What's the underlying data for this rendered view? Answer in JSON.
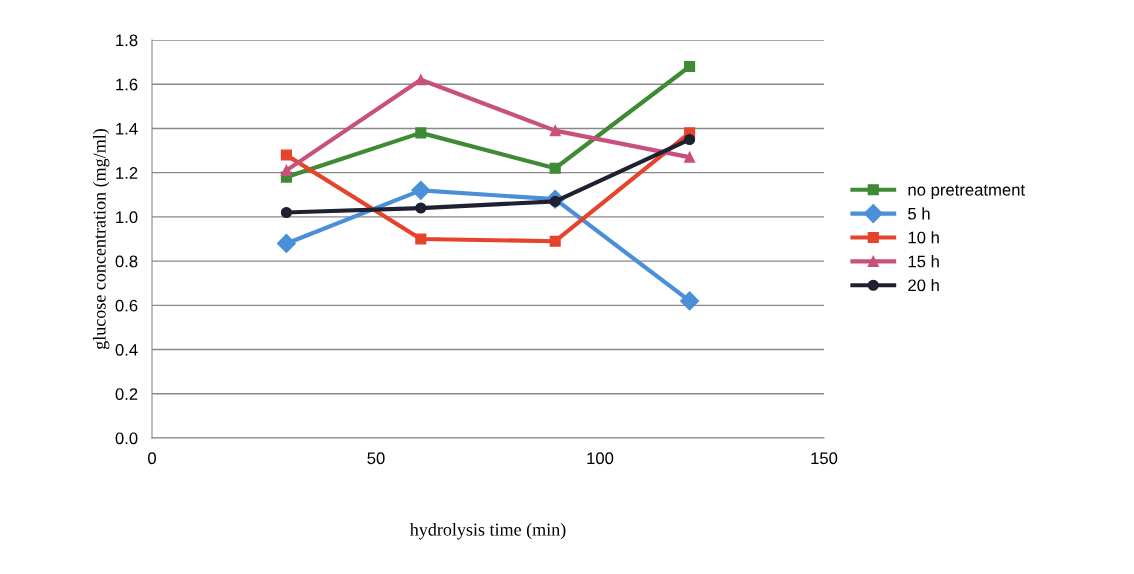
{
  "chart_data": {
    "type": "line",
    "xlabel": "hydrolysis time (min)",
    "ylabel": "glucose concentration (mg/ml)",
    "xlim": [
      0,
      150
    ],
    "xticks": [
      0,
      50,
      100,
      150
    ],
    "ylim": [
      0,
      1.8
    ],
    "yticks": [
      {
        "value": 0,
        "label": "0.0"
      },
      {
        "value": 0.2,
        "label": "0.2"
      },
      {
        "value": 0.4,
        "label": "0.4"
      },
      {
        "value": 0.6,
        "label": "0.6"
      },
      {
        "value": 0.8,
        "label": "0.8"
      },
      {
        "value": 1.0,
        "label": "1.0"
      },
      {
        "value": 1.2,
        "label": "1.2"
      },
      {
        "value": 1.4,
        "label": "1.4"
      },
      {
        "value": 1.6,
        "label": "1.6"
      },
      {
        "value": 1.8,
        "label": "1.8"
      }
    ],
    "x": [
      30,
      60,
      90,
      120
    ],
    "grid": "y",
    "legend": "right",
    "line_style": "solid",
    "series": [
      {
        "name": "no pretreatment",
        "color": "#3f8a35",
        "marker": "square",
        "values": [
          1.18,
          1.38,
          1.22,
          1.68
        ]
      },
      {
        "name": "5 h",
        "color": "#4a8fd8",
        "marker": "diamond",
        "values": [
          0.88,
          1.12,
          1.08,
          0.62
        ]
      },
      {
        "name": "10 h",
        "color": "#e5442c",
        "marker": "square",
        "values": [
          1.28,
          0.9,
          0.89,
          1.38
        ]
      },
      {
        "name": "15 h",
        "color": "#c8507a",
        "marker": "triangle",
        "values": [
          1.21,
          1.62,
          1.39,
          1.27
        ]
      },
      {
        "name": "20 h",
        "color": "#1f2030",
        "marker": "circle",
        "values": [
          1.02,
          1.04,
          1.07,
          1.35
        ]
      }
    ]
  }
}
